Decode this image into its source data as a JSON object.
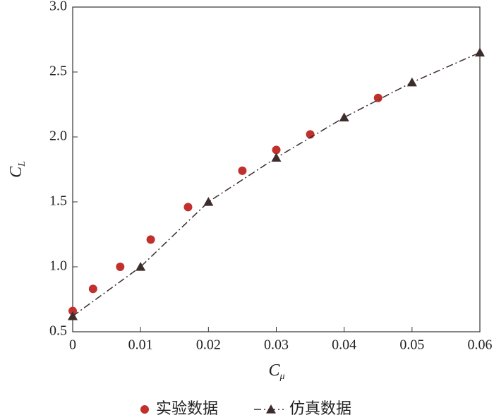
{
  "chart_data": {
    "type": "scatter",
    "x_label": {
      "main": "C",
      "sub": "μ"
    },
    "y_label": {
      "main": "C",
      "sub": "L"
    },
    "xlim": [
      0,
      0.06
    ],
    "xticks": [
      0,
      0.01,
      0.02,
      0.03,
      0.04,
      0.05,
      0.06
    ],
    "ylim": [
      0.5,
      3
    ],
    "yticks": [
      0.5,
      {
        "value": 1,
        "label": "1.0"
      },
      1.5,
      {
        "value": 2,
        "label": "2.0"
      },
      2.5,
      {
        "value": 3,
        "label": "3.0"
      }
    ],
    "series": [
      {
        "name": "实验数据",
        "color": "#c0302c",
        "mode": "markers",
        "marker": "circle",
        "x": [
          0,
          0.003,
          0.007,
          0.0115,
          0.017,
          0.025,
          0.03,
          0.035,
          0.045
        ],
        "y": [
          0.66,
          0.83,
          1.0,
          1.21,
          1.46,
          1.74,
          1.9,
          2.02,
          2.3
        ]
      },
      {
        "name": "仿真数据",
        "color": "#3d2c2c",
        "mode": "lines+markers",
        "marker": "triangle",
        "x": [
          0,
          0.01,
          0.02,
          0.03,
          0.04,
          0.05,
          0.06
        ],
        "y": [
          0.62,
          1.0,
          1.5,
          1.84,
          2.15,
          2.42,
          2.65
        ]
      }
    ]
  }
}
